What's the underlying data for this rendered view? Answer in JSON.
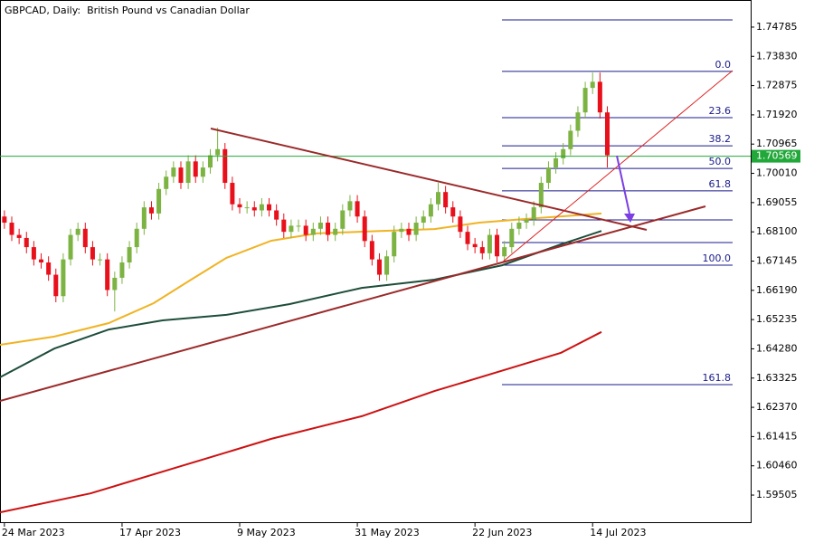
{
  "chart_data": {
    "type": "candlestick",
    "title": "GBPCAD, Daily:  British Pound vs Canadian Dollar",
    "up_color": "#7cb342",
    "down_color": "#e8101a",
    "xlim": [
      -0.6,
      101.5
    ],
    "xticks": [
      {
        "value": 0,
        "label": "24 Mar 2023"
      },
      {
        "value": 16,
        "label": "17 Apr 2023"
      },
      {
        "value": 32,
        "label": "9 May 2023"
      },
      {
        "value": 48,
        "label": "31 May 2023"
      },
      {
        "value": 64,
        "label": "22 Jun 2023"
      },
      {
        "value": 80,
        "label": "14 Jul 2023"
      }
    ],
    "ylim": [
      1.5859,
      1.7567
    ],
    "yticks": [
      {
        "value": 1.74785,
        "label": "1.74785"
      },
      {
        "value": 1.7383,
        "label": "1.73830"
      },
      {
        "value": 1.72875,
        "label": "1.72875"
      },
      {
        "value": 1.7192,
        "label": "1.71920"
      },
      {
        "value": 1.70965,
        "label": "1.70965"
      },
      {
        "value": 1.7001,
        "label": "1.70010"
      },
      {
        "value": 1.69055,
        "label": "1.69055"
      },
      {
        "value": 1.681,
        "label": "1.68100"
      },
      {
        "value": 1.67145,
        "label": "1.67145"
      },
      {
        "value": 1.6619,
        "label": "1.66190"
      },
      {
        "value": 1.65235,
        "label": "1.65235"
      },
      {
        "value": 1.6428,
        "label": "1.64280"
      },
      {
        "value": 1.63325,
        "label": "1.63325"
      },
      {
        "value": 1.6237,
        "label": "1.62370"
      },
      {
        "value": 1.61415,
        "label": "1.61415"
      },
      {
        "value": 1.6046,
        "label": "1.60460"
      },
      {
        "value": 1.59505,
        "label": "1.59505"
      }
    ],
    "open": [
      1.686,
      1.684,
      1.68,
      1.679,
      1.676,
      1.672,
      1.671,
      1.667,
      1.66,
      1.672,
      1.68,
      1.682,
      1.676,
      1.672,
      1.672,
      1.662,
      1.666,
      1.671,
      1.676,
      1.682,
      1.689,
      1.687,
      1.695,
      1.699,
      1.702,
      1.697,
      1.704,
      1.699,
      1.702,
      1.706,
      1.708,
      1.697,
      1.69,
      1.689,
      1.689,
      1.688,
      1.69,
      1.688,
      1.685,
      1.681,
      1.683,
      1.683,
      1.68,
      1.682,
      1.684,
      1.68,
      1.682,
      1.688,
      1.691,
      1.686,
      1.678,
      1.672,
      1.667,
      1.673,
      1.681,
      1.682,
      1.68,
      1.684,
      1.686,
      1.69,
      1.694,
      1.689,
      1.686,
      1.681,
      1.677,
      1.676,
      1.674,
      1.68,
      1.673,
      1.676,
      1.682,
      1.684,
      1.685,
      1.689,
      1.697,
      1.702,
      1.705,
      1.708,
      1.714,
      1.72,
      1.728,
      1.73,
      1.72
    ],
    "high": [
      1.688,
      1.686,
      1.682,
      1.681,
      1.678,
      1.674,
      1.673,
      1.669,
      1.674,
      1.682,
      1.684,
      1.684,
      1.678,
      1.674,
      1.674,
      1.668,
      1.673,
      1.678,
      1.684,
      1.691,
      1.691,
      1.697,
      1.701,
      1.704,
      1.704,
      1.706,
      1.706,
      1.704,
      1.708,
      1.715,
      1.71,
      1.699,
      1.692,
      1.691,
      1.691,
      1.692,
      1.692,
      1.69,
      1.687,
      1.685,
      1.685,
      1.685,
      1.684,
      1.686,
      1.686,
      1.684,
      1.69,
      1.693,
      1.693,
      1.688,
      1.68,
      1.674,
      1.675,
      1.683,
      1.684,
      1.684,
      1.686,
      1.688,
      1.692,
      1.697,
      1.696,
      1.691,
      1.688,
      1.683,
      1.679,
      1.678,
      1.682,
      1.682,
      1.678,
      1.684,
      1.686,
      1.687,
      1.691,
      1.699,
      1.704,
      1.707,
      1.71,
      1.716,
      1.722,
      1.73,
      1.733,
      1.733,
      1.722
    ],
    "low": [
      1.682,
      1.678,
      1.677,
      1.674,
      1.67,
      1.669,
      1.665,
      1.658,
      1.658,
      1.67,
      1.678,
      1.674,
      1.67,
      1.67,
      1.66,
      1.655,
      1.664,
      1.669,
      1.674,
      1.68,
      1.685,
      1.685,
      1.693,
      1.697,
      1.695,
      1.695,
      1.697,
      1.697,
      1.7,
      1.704,
      1.695,
      1.688,
      1.687,
      1.687,
      1.686,
      1.686,
      1.686,
      1.683,
      1.679,
      1.679,
      1.681,
      1.678,
      1.678,
      1.68,
      1.678,
      1.678,
      1.68,
      1.686,
      1.684,
      1.676,
      1.67,
      1.665,
      1.665,
      1.671,
      1.679,
      1.678,
      1.678,
      1.682,
      1.684,
      1.688,
      1.687,
      1.684,
      1.679,
      1.675,
      1.674,
      1.672,
      1.672,
      1.671,
      1.671,
      1.674,
      1.68,
      1.682,
      1.683,
      1.687,
      1.695,
      1.7,
      1.703,
      1.706,
      1.712,
      1.718,
      1.726,
      1.718,
      1.702
    ],
    "close": [
      1.684,
      1.68,
      1.679,
      1.676,
      1.672,
      1.671,
      1.667,
      1.66,
      1.672,
      1.68,
      1.682,
      1.676,
      1.672,
      1.672,
      1.662,
      1.666,
      1.671,
      1.676,
      1.682,
      1.689,
      1.687,
      1.695,
      1.699,
      1.702,
      1.697,
      1.704,
      1.699,
      1.702,
      1.706,
      1.708,
      1.697,
      1.69,
      1.689,
      1.689,
      1.688,
      1.69,
      1.688,
      1.685,
      1.681,
      1.683,
      1.683,
      1.68,
      1.682,
      1.684,
      1.68,
      1.682,
      1.688,
      1.691,
      1.686,
      1.678,
      1.672,
      1.667,
      1.673,
      1.681,
      1.682,
      1.68,
      1.684,
      1.686,
      1.69,
      1.694,
      1.689,
      1.686,
      1.681,
      1.677,
      1.676,
      1.674,
      1.68,
      1.673,
      1.676,
      1.682,
      1.684,
      1.685,
      1.689,
      1.697,
      1.702,
      1.705,
      1.708,
      1.714,
      1.72,
      1.728,
      1.73,
      1.72,
      1.706
    ],
    "series": [
      {
        "color": "#f0b323",
        "x": [
          -0.6,
          6.8,
          14.2,
          20.3,
          25.2,
          30.2,
          36.3,
          42.5,
          51.1,
          58.5,
          64.6,
          70.8,
          81.2
        ],
        "values": [
          1.6441,
          1.6468,
          1.6512,
          1.6577,
          1.6651,
          1.6725,
          1.6781,
          1.6805,
          1.6813,
          1.6819,
          1.684,
          1.6852,
          1.687
        ]
      },
      {
        "color": "#1e4d3a",
        "x": [
          -0.6,
          6.8,
          14.2,
          21.5,
          30.2,
          38.8,
          48.6,
          58.5,
          67.7,
          75.7,
          81.2
        ],
        "values": [
          1.6335,
          1.6429,
          1.6491,
          1.6521,
          1.6539,
          1.6574,
          1.6627,
          1.6654,
          1.6701,
          1.6769,
          1.6813
        ]
      },
      {
        "color": "#cc1111",
        "x": [
          -0.6,
          11.7,
          24,
          36.3,
          48.6,
          58.5,
          68.3,
          75.7,
          81.2
        ],
        "values": [
          1.5894,
          1.5956,
          1.6045,
          1.6134,
          1.6208,
          1.629,
          1.6361,
          1.6415,
          1.6483
        ]
      }
    ],
    "last_price": 1.70569,
    "last_price_color": "#22a83a",
    "fib_color": "#1a1a8c",
    "fib_levels": [
      {
        "label": null,
        "price": 1.7502
      },
      {
        "label": "0.0",
        "price": 1.7334
      },
      {
        "label": "23.6",
        "price": 1.7183
      },
      {
        "label": "38.2",
        "price": 1.7091
      },
      {
        "label": "50.0",
        "price": 1.7017
      },
      {
        "label": "61.8",
        "price": 1.6944
      },
      {
        "label": null,
        "price": 1.6849
      },
      {
        "label": null,
        "price": 1.6775
      },
      {
        "label": "100.0",
        "price": 1.6701
      },
      {
        "label": "161.8",
        "price": 1.6311
      }
    ]
  }
}
